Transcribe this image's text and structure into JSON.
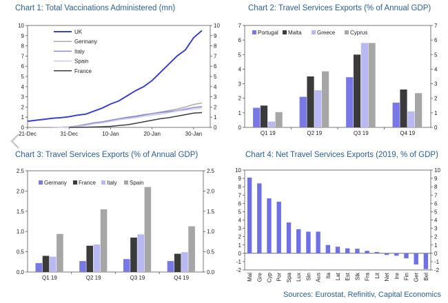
{
  "source_label": "Sources: Eurostat, Refinitiv, Capital Economics",
  "colors": {
    "title": "#2a5f8f",
    "uk": "#3a3fd0",
    "germany": "#a9a9a9",
    "italy": "#8a8ad8",
    "spain": "#c8c8ec",
    "france": "#3a3a3a",
    "portugal": "#7878e6",
    "malta": "#3b3b3b",
    "greece": "#b8b8f2",
    "cyprus": "#a6a6a6",
    "bar": "#6f6fe6"
  },
  "nav_icon": "chevron-left-icon",
  "chart_data": [
    {
      "type": "line",
      "title": "Chart 1: Total Vaccinations Administered (mn)",
      "ylim": [
        0,
        10
      ],
      "y_ticks": [
        "0",
        "1",
        "2",
        "3",
        "4",
        "5",
        "6",
        "7",
        "8",
        "9",
        "10"
      ],
      "x_tick_labels": [
        "21-Dec",
        "31-Dec",
        "10-Jan",
        "20-Jan",
        "30-Jan"
      ],
      "x_tick_days": [
        0,
        10,
        20,
        30,
        40
      ],
      "xlim": [
        0,
        44
      ],
      "series": [
        {
          "name": "UK",
          "color": "#3a3fd0",
          "width": 2,
          "x": [
            0,
            2,
            4,
            6,
            8,
            10,
            12,
            14,
            16,
            18,
            20,
            22,
            24,
            26,
            28,
            30,
            32,
            34,
            36,
            38,
            40,
            42
          ],
          "y": [
            0.6,
            0.7,
            0.8,
            0.9,
            0.95,
            1.05,
            1.2,
            1.3,
            1.6,
            1.9,
            2.3,
            2.6,
            3.1,
            3.6,
            4.0,
            4.6,
            5.4,
            6.2,
            7.0,
            7.6,
            8.8,
            9.5
          ]
        },
        {
          "name": "Germany",
          "color": "#a9a9a9",
          "width": 1.5,
          "x": [
            6,
            8,
            10,
            12,
            14,
            16,
            18,
            20,
            22,
            24,
            26,
            28,
            30,
            32,
            34,
            36,
            38,
            40,
            42
          ],
          "y": [
            0,
            0.02,
            0.05,
            0.1,
            0.2,
            0.35,
            0.45,
            0.6,
            0.75,
            0.9,
            1.05,
            1.2,
            1.35,
            1.5,
            1.65,
            1.8,
            2.0,
            2.25,
            2.4
          ]
        },
        {
          "name": "Italy",
          "color": "#8a8ad8",
          "width": 1.5,
          "x": [
            6,
            8,
            10,
            12,
            14,
            16,
            18,
            20,
            22,
            24,
            26,
            28,
            30,
            32,
            34,
            36,
            38,
            40,
            42
          ],
          "y": [
            0,
            0.02,
            0.05,
            0.15,
            0.3,
            0.45,
            0.55,
            0.7,
            0.85,
            1.0,
            1.1,
            1.25,
            1.35,
            1.45,
            1.55,
            1.65,
            1.8,
            1.95,
            2.05
          ]
        },
        {
          "name": "Spain",
          "color": "#c8c8ec",
          "width": 1.5,
          "x": [
            6,
            8,
            10,
            12,
            14,
            16,
            18,
            20,
            22,
            24,
            26,
            28,
            30,
            32,
            34,
            36,
            38,
            40,
            42
          ],
          "y": [
            0,
            0.02,
            0.04,
            0.1,
            0.2,
            0.35,
            0.45,
            0.6,
            0.75,
            0.85,
            0.95,
            1.1,
            1.2,
            1.3,
            1.45,
            1.6,
            1.7,
            1.8,
            1.9
          ]
        },
        {
          "name": "France",
          "color": "#3a3a3a",
          "width": 1.5,
          "x": [
            10,
            12,
            14,
            16,
            18,
            20,
            22,
            24,
            26,
            28,
            30,
            32,
            34,
            36,
            38,
            40,
            42
          ],
          "y": [
            0,
            0.01,
            0.02,
            0.04,
            0.07,
            0.1,
            0.18,
            0.25,
            0.4,
            0.55,
            0.7,
            0.85,
            0.95,
            1.1,
            1.25,
            1.4,
            1.45
          ]
        }
      ]
    },
    {
      "type": "bar",
      "title": "Chart 2: Travel Services Exports (% of Annual GDP)",
      "ylim": [
        0,
        7
      ],
      "y_ticks": [
        "0",
        "1",
        "2",
        "3",
        "4",
        "5",
        "6",
        "7"
      ],
      "categories": [
        "Q1 19",
        "Q2 19",
        "Q3 19",
        "Q4 19"
      ],
      "series": [
        {
          "name": "Portugal",
          "color": "#7878e6",
          "values": [
            1.35,
            2.1,
            3.45,
            1.7
          ]
        },
        {
          "name": "Malta",
          "color": "#3b3b3b",
          "values": [
            1.5,
            3.5,
            5.0,
            2.6
          ]
        },
        {
          "name": "Greece",
          "color": "#b8b8f2",
          "values": [
            0.4,
            2.55,
            5.8,
            1.1
          ]
        },
        {
          "name": "Cyprus",
          "color": "#a6a6a6",
          "values": [
            1.05,
            3.85,
            5.8,
            2.35
          ]
        }
      ]
    },
    {
      "type": "bar",
      "title": "Chart 3: Travel Services Exports (% of Annual GDP)",
      "ylim": [
        0,
        2.5
      ],
      "y_ticks": [
        "0.0",
        "0.5",
        "1.0",
        "1.5",
        "2.0",
        "2.5"
      ],
      "categories": [
        "Q1 19",
        "Q2 19",
        "Q3 19",
        "Q4 19"
      ],
      "series": [
        {
          "name": "Germany",
          "color": "#7878e6",
          "values": [
            0.22,
            0.27,
            0.32,
            0.27
          ]
        },
        {
          "name": "France",
          "color": "#3b3b3b",
          "values": [
            0.4,
            0.65,
            0.85,
            0.45
          ]
        },
        {
          "name": "Italy",
          "color": "#b8b8f2",
          "values": [
            0.38,
            0.68,
            0.93,
            0.49
          ]
        },
        {
          "name": "Spain",
          "color": "#a6a6a6",
          "values": [
            0.94,
            1.55,
            2.1,
            1.13
          ]
        }
      ]
    },
    {
      "type": "bar",
      "title": "Chart 4: Net Travel Services Exports (2019, % of GDP)",
      "ylim": [
        -2,
        10
      ],
      "y_ticks": [
        "-2",
        "-1",
        "0",
        "1",
        "2",
        "3",
        "4",
        "5",
        "6",
        "7",
        "8",
        "9",
        "10"
      ],
      "categories": [
        "Mal",
        "Gre",
        "Cyp",
        "Por",
        "Spa",
        "Lux",
        "Sln",
        "Aus",
        "Ita",
        "Lat",
        "Est",
        "Slk",
        "Fra",
        "Lit",
        "Net",
        "Ire",
        "Fin",
        "Ger",
        "Bel"
      ],
      "values": [
        9.1,
        8.4,
        6.6,
        6.2,
        3.7,
        2.9,
        2.6,
        2.6,
        1.0,
        0.8,
        0.6,
        0.55,
        0.3,
        0.15,
        -0.2,
        -0.3,
        -0.6,
        -1.35,
        -1.9
      ]
    }
  ]
}
